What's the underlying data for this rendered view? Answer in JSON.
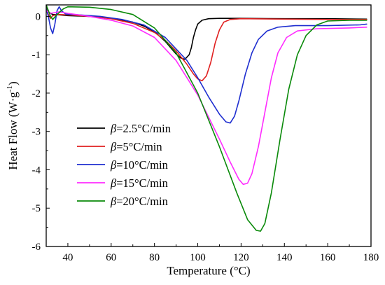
{
  "chart_data": {
    "type": "line",
    "xlabel": "Temperature (°C)",
    "ylabel_main": "Heat Flow (W·g",
    "ylabel_sup": "-1",
    "ylabel_close": ")",
    "xlim": [
      30,
      180
    ],
    "ylim": [
      -6,
      0.3
    ],
    "xticks": [
      40,
      60,
      80,
      100,
      120,
      140,
      160,
      180
    ],
    "yticks": [
      0,
      -1,
      -2,
      -3,
      -4,
      -5,
      -6
    ],
    "grid": false,
    "legend_position": "lower-left",
    "legend_symbol": "β",
    "series": [
      {
        "name": "β=2.5°C/min",
        "label_rest": "=2.5°C/min",
        "color": "#000000",
        "points": [
          [
            30,
            0.3
          ],
          [
            31,
            0.12
          ],
          [
            33,
            0.05
          ],
          [
            36,
            0.04
          ],
          [
            40,
            0.02
          ],
          [
            50,
            0.0
          ],
          [
            60,
            -0.05
          ],
          [
            70,
            -0.15
          ],
          [
            75,
            -0.25
          ],
          [
            80,
            -0.4
          ],
          [
            85,
            -0.65
          ],
          [
            88,
            -0.85
          ],
          [
            90,
            -0.98
          ],
          [
            92,
            -1.08
          ],
          [
            94,
            -1.12
          ],
          [
            96,
            -1.0
          ],
          [
            97,
            -0.82
          ],
          [
            98,
            -0.55
          ],
          [
            99,
            -0.35
          ],
          [
            100,
            -0.2
          ],
          [
            102,
            -0.1
          ],
          [
            105,
            -0.06
          ],
          [
            110,
            -0.05
          ],
          [
            120,
            -0.05
          ],
          [
            140,
            -0.06
          ],
          [
            160,
            -0.06
          ],
          [
            178,
            -0.07
          ]
        ]
      },
      {
        "name": "β=5°C/min",
        "label_rest": "=5°C/min",
        "color": "#e02020",
        "points": [
          [
            30,
            0.2
          ],
          [
            31,
            0.05
          ],
          [
            32,
            -0.05
          ],
          [
            33,
            0.02
          ],
          [
            35,
            0.05
          ],
          [
            40,
            0.04
          ],
          [
            50,
            0.0
          ],
          [
            60,
            -0.06
          ],
          [
            70,
            -0.18
          ],
          [
            80,
            -0.42
          ],
          [
            85,
            -0.62
          ],
          [
            90,
            -0.9
          ],
          [
            95,
            -1.25
          ],
          [
            98,
            -1.5
          ],
          [
            100,
            -1.63
          ],
          [
            102,
            -1.68
          ],
          [
            104,
            -1.55
          ],
          [
            106,
            -1.2
          ],
          [
            108,
            -0.7
          ],
          [
            110,
            -0.35
          ],
          [
            112,
            -0.15
          ],
          [
            115,
            -0.08
          ],
          [
            120,
            -0.06
          ],
          [
            140,
            -0.07
          ],
          [
            160,
            -0.08
          ],
          [
            178,
            -0.08
          ]
        ]
      },
      {
        "name": "β=10°C/min",
        "label_rest": "=10°C/min",
        "color": "#1f2fd0",
        "points": [
          [
            30,
            0.2
          ],
          [
            31,
            0.0
          ],
          [
            32,
            -0.3
          ],
          [
            33,
            -0.45
          ],
          [
            34,
            -0.2
          ],
          [
            35,
            0.15
          ],
          [
            36,
            0.25
          ],
          [
            37,
            0.15
          ],
          [
            39,
            0.06
          ],
          [
            45,
            0.04
          ],
          [
            55,
            0.0
          ],
          [
            65,
            -0.08
          ],
          [
            75,
            -0.22
          ],
          [
            85,
            -0.55
          ],
          [
            95,
            -1.15
          ],
          [
            100,
            -1.6
          ],
          [
            105,
            -2.1
          ],
          [
            110,
            -2.55
          ],
          [
            113,
            -2.75
          ],
          [
            115,
            -2.78
          ],
          [
            117,
            -2.6
          ],
          [
            119,
            -2.2
          ],
          [
            122,
            -1.5
          ],
          [
            125,
            -0.95
          ],
          [
            128,
            -0.6
          ],
          [
            132,
            -0.38
          ],
          [
            137,
            -0.28
          ],
          [
            145,
            -0.24
          ],
          [
            160,
            -0.24
          ],
          [
            175,
            -0.22
          ],
          [
            178,
            -0.2
          ]
        ]
      },
      {
        "name": "β=15°C/min",
        "label_rest": "=15°C/min",
        "color": "#ff2cff",
        "points": [
          [
            30,
            0.15
          ],
          [
            32,
            0.08
          ],
          [
            34,
            0.1
          ],
          [
            36,
            0.12
          ],
          [
            40,
            0.08
          ],
          [
            50,
            0.0
          ],
          [
            60,
            -0.1
          ],
          [
            70,
            -0.25
          ],
          [
            80,
            -0.55
          ],
          [
            90,
            -1.15
          ],
          [
            100,
            -2.05
          ],
          [
            110,
            -3.2
          ],
          [
            115,
            -3.8
          ],
          [
            119,
            -4.25
          ],
          [
            121,
            -4.38
          ],
          [
            123,
            -4.35
          ],
          [
            125,
            -4.1
          ],
          [
            128,
            -3.4
          ],
          [
            131,
            -2.5
          ],
          [
            134,
            -1.6
          ],
          [
            137,
            -0.95
          ],
          [
            141,
            -0.55
          ],
          [
            146,
            -0.38
          ],
          [
            155,
            -0.32
          ],
          [
            170,
            -0.3
          ],
          [
            178,
            -0.28
          ]
        ]
      },
      {
        "name": "β=20°C/min",
        "label_rest": "=20°C/min",
        "color": "#0a8a0a",
        "points": [
          [
            30,
            0.3
          ],
          [
            31,
            0.15
          ],
          [
            32,
            0.0
          ],
          [
            33,
            -0.08
          ],
          [
            35,
            0.05
          ],
          [
            38,
            0.2
          ],
          [
            40,
            0.25
          ],
          [
            50,
            0.24
          ],
          [
            60,
            0.18
          ],
          [
            70,
            0.05
          ],
          [
            80,
            -0.3
          ],
          [
            90,
            -0.95
          ],
          [
            100,
            -2.0
          ],
          [
            110,
            -3.4
          ],
          [
            118,
            -4.6
          ],
          [
            123,
            -5.3
          ],
          [
            127,
            -5.58
          ],
          [
            129,
            -5.6
          ],
          [
            131,
            -5.4
          ],
          [
            134,
            -4.6
          ],
          [
            138,
            -3.2
          ],
          [
            142,
            -1.9
          ],
          [
            146,
            -1.0
          ],
          [
            150,
            -0.5
          ],
          [
            155,
            -0.22
          ],
          [
            160,
            -0.12
          ],
          [
            170,
            -0.1
          ],
          [
            178,
            -0.1
          ]
        ]
      }
    ]
  }
}
